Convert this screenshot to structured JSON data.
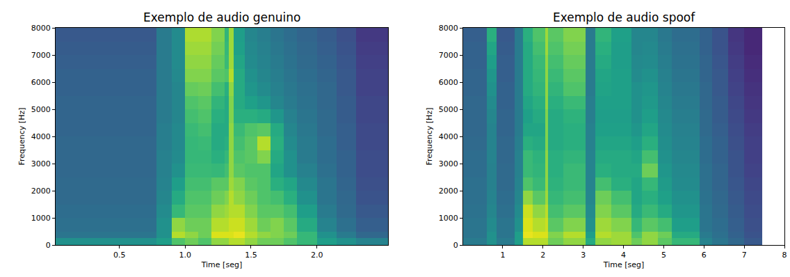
{
  "chart_data": [
    {
      "type": "heatmap",
      "title": "Exemplo de audio genuino",
      "x_label": "Time [seg]",
      "y_label": "Frequency [Hz]",
      "color": "Viridis",
      "xlim": [
        0.016,
        2.54
      ],
      "xticks": [
        0.5,
        {
          "value": 1,
          "label": "1.0"
        },
        1.5,
        {
          "value": 2,
          "label": "2.0"
        }
      ],
      "ylim": [
        0,
        8000
      ],
      "yticks": [
        0,
        1000,
        2000,
        3000,
        4000,
        5000,
        6000,
        7000,
        8000
      ],
      "zlim": [
        0.05,
        0.95
      ],
      "time_edges": [
        0.016,
        0.2,
        0.4,
        0.6,
        0.78,
        0.9,
        1.0,
        1.1,
        1.2,
        1.3,
        1.33,
        1.37,
        1.45,
        1.55,
        1.65,
        1.75,
        1.85,
        2.0,
        2.15,
        2.3,
        2.54
      ],
      "freq_edges": [
        0,
        250,
        500,
        1000,
        1500,
        2000,
        2500,
        3000,
        3500,
        4000,
        4500,
        5000,
        5500,
        6000,
        6500,
        7000,
        7500,
        8000
      ],
      "z": [
        [
          0.5,
          0.5,
          0.5,
          0.5,
          0.55,
          0.7,
          0.75,
          0.7,
          0.8,
          0.8,
          0.85,
          0.85,
          0.8,
          0.75,
          0.75,
          0.7,
          0.65,
          0.55,
          0.5,
          0.45
        ],
        [
          0.4,
          0.4,
          0.4,
          0.4,
          0.5,
          0.85,
          0.8,
          0.75,
          0.9,
          0.9,
          0.9,
          0.92,
          0.85,
          0.8,
          0.78,
          0.75,
          0.65,
          0.5,
          0.42,
          0.35
        ],
        [
          0.38,
          0.38,
          0.38,
          0.38,
          0.5,
          0.8,
          0.75,
          0.75,
          0.85,
          0.85,
          0.88,
          0.88,
          0.82,
          0.75,
          0.78,
          0.72,
          0.6,
          0.45,
          0.38,
          0.32
        ],
        [
          0.37,
          0.37,
          0.37,
          0.37,
          0.48,
          0.65,
          0.72,
          0.72,
          0.8,
          0.82,
          0.85,
          0.85,
          0.78,
          0.72,
          0.72,
          0.68,
          0.55,
          0.42,
          0.36,
          0.3
        ],
        [
          0.36,
          0.36,
          0.36,
          0.36,
          0.46,
          0.6,
          0.7,
          0.7,
          0.75,
          0.78,
          0.85,
          0.8,
          0.75,
          0.7,
          0.68,
          0.62,
          0.5,
          0.4,
          0.35,
          0.28
        ],
        [
          0.36,
          0.36,
          0.36,
          0.36,
          0.45,
          0.55,
          0.68,
          0.68,
          0.72,
          0.72,
          0.82,
          0.78,
          0.72,
          0.7,
          0.62,
          0.58,
          0.47,
          0.4,
          0.34,
          0.27
        ],
        [
          0.35,
          0.35,
          0.35,
          0.35,
          0.44,
          0.5,
          0.66,
          0.66,
          0.65,
          0.68,
          0.8,
          0.72,
          0.7,
          0.7,
          0.58,
          0.5,
          0.44,
          0.38,
          0.33,
          0.26
        ],
        [
          0.35,
          0.35,
          0.35,
          0.35,
          0.44,
          0.48,
          0.65,
          0.65,
          0.62,
          0.65,
          0.8,
          0.7,
          0.72,
          0.78,
          0.6,
          0.5,
          0.42,
          0.37,
          0.33,
          0.26
        ],
        [
          0.35,
          0.35,
          0.35,
          0.35,
          0.43,
          0.47,
          0.65,
          0.66,
          0.6,
          0.62,
          0.8,
          0.68,
          0.72,
          0.85,
          0.62,
          0.48,
          0.42,
          0.37,
          0.32,
          0.25
        ],
        [
          0.34,
          0.34,
          0.34,
          0.34,
          0.43,
          0.47,
          0.66,
          0.68,
          0.6,
          0.6,
          0.8,
          0.66,
          0.7,
          0.72,
          0.6,
          0.46,
          0.41,
          0.36,
          0.32,
          0.25
        ],
        [
          0.34,
          0.34,
          0.34,
          0.34,
          0.42,
          0.46,
          0.68,
          0.7,
          0.62,
          0.6,
          0.78,
          0.62,
          0.62,
          0.6,
          0.52,
          0.44,
          0.4,
          0.36,
          0.31,
          0.24
        ],
        [
          0.34,
          0.34,
          0.34,
          0.34,
          0.42,
          0.46,
          0.7,
          0.72,
          0.64,
          0.6,
          0.78,
          0.6,
          0.56,
          0.52,
          0.46,
          0.42,
          0.39,
          0.35,
          0.31,
          0.24
        ],
        [
          0.33,
          0.33,
          0.33,
          0.33,
          0.42,
          0.46,
          0.74,
          0.75,
          0.68,
          0.62,
          0.8,
          0.6,
          0.52,
          0.48,
          0.44,
          0.41,
          0.38,
          0.35,
          0.3,
          0.23
        ],
        [
          0.33,
          0.33,
          0.33,
          0.33,
          0.42,
          0.47,
          0.78,
          0.78,
          0.72,
          0.7,
          0.85,
          0.6,
          0.5,
          0.46,
          0.43,
          0.4,
          0.37,
          0.34,
          0.3,
          0.23
        ],
        [
          0.32,
          0.32,
          0.32,
          0.32,
          0.42,
          0.48,
          0.8,
          0.8,
          0.74,
          0.66,
          0.82,
          0.58,
          0.48,
          0.45,
          0.42,
          0.39,
          0.36,
          0.33,
          0.29,
          0.22
        ],
        [
          0.31,
          0.31,
          0.31,
          0.31,
          0.42,
          0.48,
          0.82,
          0.82,
          0.76,
          0.65,
          0.82,
          0.56,
          0.47,
          0.44,
          0.41,
          0.38,
          0.35,
          0.32,
          0.28,
          0.21
        ],
        [
          0.3,
          0.3,
          0.3,
          0.3,
          0.42,
          0.48,
          0.84,
          0.84,
          0.78,
          0.64,
          0.82,
          0.55,
          0.46,
          0.43,
          0.4,
          0.37,
          0.34,
          0.31,
          0.27,
          0.2
        ]
      ]
    },
    {
      "type": "heatmap",
      "title": "Exemplo de audio spoof",
      "x_label": "Time [seg]",
      "y_label": "Frequency [Hz]",
      "color": "Viridis",
      "xlim": [
        0.016,
        8
      ],
      "xticks": [
        1,
        2,
        3,
        4,
        5,
        6,
        7,
        8
      ],
      "ylim": [
        0,
        8000
      ],
      "yticks": [
        0,
        1000,
        2000,
        3000,
        4000,
        5000,
        6000,
        7000,
        8000
      ],
      "zlim": [
        0.05,
        0.95
      ],
      "time_edges": [
        0.016,
        0.5,
        0.6,
        0.85,
        1.3,
        1.5,
        1.75,
        2.05,
        2.13,
        2.5,
        3.05,
        3.3,
        3.7,
        4.2,
        4.45,
        4.85,
        5.2,
        5.9,
        6.2,
        6.6,
        7.0,
        7.45
      ],
      "freq_edges": [
        0,
        250,
        500,
        1000,
        1500,
        2000,
        2500,
        3000,
        3500,
        4000,
        4500,
        5000,
        5500,
        6000,
        6500,
        7000,
        7500,
        8000
      ],
      "z": [
        [
          0.42,
          0.42,
          0.5,
          0.42,
          0.55,
          0.85,
          0.85,
          0.85,
          0.75,
          0.8,
          0.6,
          0.8,
          0.82,
          0.75,
          0.8,
          0.72,
          0.65,
          0.45,
          0.4,
          0.35,
          0.3
        ],
        [
          0.4,
          0.4,
          0.5,
          0.4,
          0.55,
          0.92,
          0.9,
          0.9,
          0.78,
          0.85,
          0.55,
          0.85,
          0.82,
          0.7,
          0.8,
          0.75,
          0.6,
          0.42,
          0.38,
          0.33,
          0.28
        ],
        [
          0.4,
          0.4,
          0.48,
          0.4,
          0.5,
          0.9,
          0.85,
          0.88,
          0.72,
          0.78,
          0.5,
          0.82,
          0.78,
          0.65,
          0.72,
          0.68,
          0.55,
          0.4,
          0.37,
          0.32,
          0.27
        ],
        [
          0.39,
          0.39,
          0.46,
          0.38,
          0.48,
          0.88,
          0.8,
          0.86,
          0.68,
          0.72,
          0.48,
          0.78,
          0.72,
          0.6,
          0.66,
          0.6,
          0.52,
          0.4,
          0.36,
          0.31,
          0.26
        ],
        [
          0.38,
          0.38,
          0.45,
          0.37,
          0.46,
          0.8,
          0.72,
          0.82,
          0.65,
          0.68,
          0.46,
          0.75,
          0.68,
          0.58,
          0.62,
          0.56,
          0.5,
          0.39,
          0.35,
          0.3,
          0.25
        ],
        [
          0.38,
          0.38,
          0.44,
          0.36,
          0.45,
          0.7,
          0.66,
          0.8,
          0.63,
          0.66,
          0.45,
          0.68,
          0.62,
          0.58,
          0.65,
          0.54,
          0.48,
          0.38,
          0.34,
          0.29,
          0.24
        ],
        [
          0.37,
          0.37,
          0.44,
          0.36,
          0.44,
          0.66,
          0.64,
          0.8,
          0.62,
          0.66,
          0.45,
          0.62,
          0.6,
          0.6,
          0.75,
          0.52,
          0.47,
          0.38,
          0.34,
          0.28,
          0.23
        ],
        [
          0.37,
          0.37,
          0.45,
          0.35,
          0.44,
          0.66,
          0.63,
          0.8,
          0.62,
          0.64,
          0.45,
          0.6,
          0.6,
          0.58,
          0.68,
          0.5,
          0.46,
          0.37,
          0.33,
          0.28,
          0.22
        ],
        [
          0.36,
          0.36,
          0.45,
          0.35,
          0.43,
          0.62,
          0.6,
          0.78,
          0.6,
          0.62,
          0.44,
          0.58,
          0.58,
          0.55,
          0.62,
          0.49,
          0.45,
          0.37,
          0.33,
          0.27,
          0.22
        ],
        [
          0.35,
          0.35,
          0.45,
          0.34,
          0.42,
          0.58,
          0.58,
          0.78,
          0.6,
          0.62,
          0.44,
          0.56,
          0.56,
          0.52,
          0.58,
          0.48,
          0.44,
          0.36,
          0.32,
          0.26,
          0.21
        ],
        [
          0.35,
          0.35,
          0.46,
          0.34,
          0.42,
          0.56,
          0.6,
          0.78,
          0.6,
          0.63,
          0.43,
          0.55,
          0.55,
          0.5,
          0.55,
          0.47,
          0.43,
          0.36,
          0.31,
          0.25,
          0.2
        ],
        [
          0.35,
          0.35,
          0.48,
          0.33,
          0.42,
          0.58,
          0.62,
          0.8,
          0.62,
          0.66,
          0.43,
          0.56,
          0.56,
          0.5,
          0.53,
          0.46,
          0.42,
          0.35,
          0.31,
          0.24,
          0.19
        ],
        [
          0.34,
          0.34,
          0.5,
          0.33,
          0.42,
          0.6,
          0.64,
          0.8,
          0.64,
          0.7,
          0.42,
          0.57,
          0.56,
          0.5,
          0.52,
          0.45,
          0.41,
          0.35,
          0.3,
          0.23,
          0.18
        ],
        [
          0.34,
          0.34,
          0.52,
          0.32,
          0.42,
          0.6,
          0.65,
          0.8,
          0.66,
          0.72,
          0.42,
          0.58,
          0.56,
          0.48,
          0.5,
          0.44,
          0.4,
          0.34,
          0.3,
          0.22,
          0.17
        ],
        [
          0.33,
          0.33,
          0.55,
          0.32,
          0.42,
          0.6,
          0.66,
          0.8,
          0.68,
          0.74,
          0.42,
          0.6,
          0.55,
          0.47,
          0.48,
          0.43,
          0.39,
          0.34,
          0.29,
          0.21,
          0.16
        ],
        [
          0.33,
          0.33,
          0.58,
          0.31,
          0.42,
          0.6,
          0.68,
          0.82,
          0.7,
          0.76,
          0.42,
          0.62,
          0.55,
          0.46,
          0.47,
          0.42,
          0.38,
          0.33,
          0.28,
          0.2,
          0.15
        ],
        [
          0.32,
          0.32,
          0.62,
          0.3,
          0.42,
          0.62,
          0.7,
          0.82,
          0.72,
          0.78,
          0.42,
          0.64,
          0.56,
          0.46,
          0.46,
          0.41,
          0.37,
          0.33,
          0.28,
          0.19,
          0.15
        ]
      ]
    }
  ]
}
